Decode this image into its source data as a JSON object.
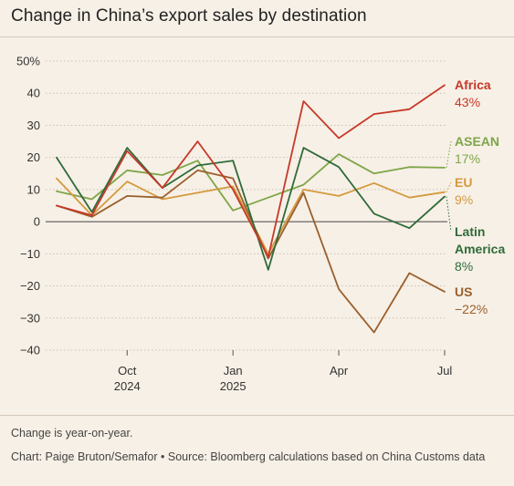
{
  "title": "Change in China’s export sales by destination",
  "note": "Change is year-on-year.",
  "credit": {
    "chart": "Chart: Paige Bruton/Semafor",
    "bullet": "•",
    "source": "Source: Bloomberg calculations based on China Customs data"
  },
  "colors": {
    "background": "#f7f0e6",
    "grid": "#c9c0b3",
    "Africa": "#c6392a",
    "ASEAN": "#7ea648",
    "EU": "#d49a3f",
    "Latin America": "#2f6b3a",
    "US": "#9a5f2c"
  },
  "chart_data": {
    "type": "line",
    "title": "Change in China’s export sales by destination",
    "x": [
      "2024-08",
      "2024-09",
      "2024-10",
      "2024-11",
      "2024-12",
      "2025-01",
      "2025-02",
      "2025-03",
      "2025-04",
      "2025-05",
      "2025-06",
      "2025-07"
    ],
    "x_ticks": [
      {
        "x": "2024-10",
        "label": "Oct",
        "sublabel": "2024"
      },
      {
        "x": "2025-01",
        "label": "Jan",
        "sublabel": "2025"
      },
      {
        "x": "2025-04",
        "label": "Apr",
        "sublabel": ""
      },
      {
        "x": "2025-07",
        "label": "Jul",
        "sublabel": ""
      }
    ],
    "ylim": [
      -40,
      50
    ],
    "y_ticks": [
      {
        "value": 50,
        "label": "50%"
      },
      {
        "value": 40,
        "label": "40"
      },
      {
        "value": 30,
        "label": "30"
      },
      {
        "value": 20,
        "label": "20"
      },
      {
        "value": 10,
        "label": "10"
      },
      {
        "value": 0,
        "label": "0"
      },
      {
        "value": -10,
        "label": "−10"
      },
      {
        "value": -20,
        "label": "−20"
      },
      {
        "value": -30,
        "label": "−30"
      },
      {
        "value": -40,
        "label": "−40"
      }
    ],
    "grid": true,
    "legend": "end-labels",
    "series": [
      {
        "name": "Africa",
        "end_label": "43%",
        "values": [
          5,
          2,
          22,
          10.5,
          25,
          10,
          -11,
          37.5,
          26,
          33.5,
          35,
          42.5
        ]
      },
      {
        "name": "ASEAN",
        "end_label": "17%",
        "values": [
          9.5,
          7,
          16,
          14.5,
          19,
          3.5,
          7.5,
          11.5,
          21,
          15,
          17,
          16.8
        ]
      },
      {
        "name": "EU",
        "end_label": "9%",
        "values": [
          13.5,
          2,
          12.5,
          7,
          9,
          11,
          -10,
          10,
          8,
          12,
          7.5,
          9.2
        ]
      },
      {
        "name": "Latin America",
        "end_label": "8%",
        "values": [
          20,
          3,
          23,
          10.5,
          17.5,
          19,
          -15,
          23,
          17,
          2.5,
          -2,
          7.8
        ]
      },
      {
        "name": "US",
        "end_label": "−22%",
        "values": [
          5,
          1.5,
          8,
          7.5,
          16,
          13.5,
          -11.5,
          9,
          -21,
          -34.5,
          -16,
          -21.8
        ]
      }
    ],
    "end_labels": [
      {
        "series": "Africa",
        "lines": [
          "Africa"
        ],
        "value": "43%"
      },
      {
        "series": "ASEAN",
        "lines": [
          "ASEAN"
        ],
        "value": "17%"
      },
      {
        "series": "EU",
        "lines": [
          "EU"
        ],
        "value": "9%"
      },
      {
        "series": "Latin America",
        "lines": [
          "Latin",
          "America"
        ],
        "value": "8%"
      },
      {
        "series": "US",
        "lines": [
          "US"
        ],
        "value": "−22%"
      }
    ]
  }
}
